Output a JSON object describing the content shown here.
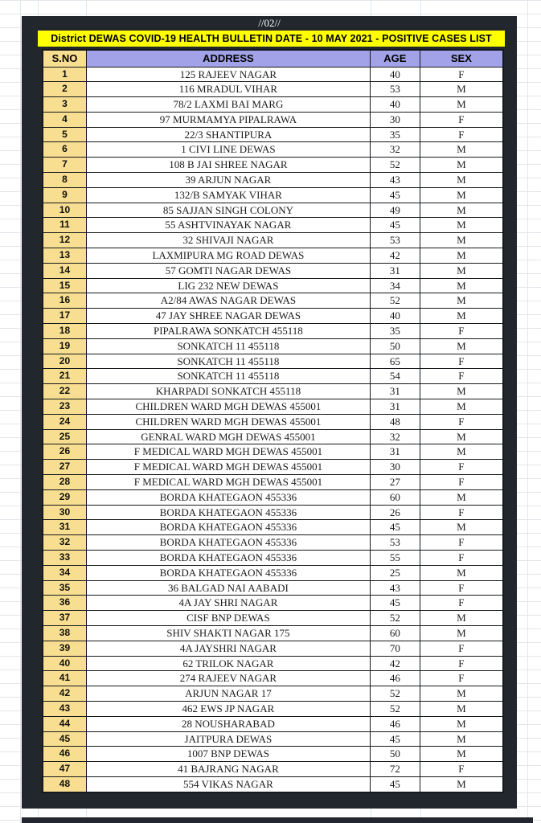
{
  "page": {
    "marker": "//02//"
  },
  "banner": {
    "title": "District DEWAS COVID-19 HEALTH BULLETIN DATE - 10 MAY 2021 - POSITIVE CASES LIST",
    "bg_color": "#ffff00"
  },
  "table": {
    "columns": [
      "S.NO",
      "ADDRESS",
      "AGE",
      "SEX"
    ],
    "colors": {
      "panel_bg": "#22272d",
      "serial_bg": "#f8de90",
      "header_bg": "#a2a2e8"
    },
    "rows": [
      [
        "1",
        "125 RAJEEV NAGAR",
        "40",
        "F"
      ],
      [
        "2",
        "116 MRADUL VIHAR",
        "53",
        "M"
      ],
      [
        "3",
        "78/2  LAXMI BAI MARG",
        "40",
        "M"
      ],
      [
        "4",
        "97 MURMAMYA PIPALRAWA",
        "30",
        "F"
      ],
      [
        "5",
        "22/3 SHANTIPURA",
        "35",
        "F"
      ],
      [
        "6",
        "1 CIVI LINE DEWAS",
        "32",
        "M"
      ],
      [
        "7",
        "108 B JAI SHREE NAGAR",
        "52",
        "M"
      ],
      [
        "8",
        "39 ARJUN NAGAR",
        "43",
        "M"
      ],
      [
        "9",
        "132/B SAMYAK VIHAR",
        "45",
        "M"
      ],
      [
        "10",
        "85 SAJJAN SINGH COLONY",
        "49",
        "M"
      ],
      [
        "11",
        "55 ASHTVINAYAK NAGAR",
        "45",
        "M"
      ],
      [
        "12",
        "32 SHIVAJI NAGAR",
        "53",
        "M"
      ],
      [
        "13",
        "LAXMIPURA  MG ROAD DEWAS",
        "42",
        "M"
      ],
      [
        "14",
        "57 GOMTI NAGAR DEWAS",
        "31",
        "M"
      ],
      [
        "15",
        "LIG 232 NEW DEWAS",
        "34",
        "M"
      ],
      [
        "16",
        "A2/84 AWAS NAGAR DEWAS",
        "52",
        "M"
      ],
      [
        "17",
        "47 JAY SHREE NAGAR DEWAS",
        "40",
        "M"
      ],
      [
        "18",
        "PIPALRAWA SONKATCH 455118",
        "35",
        "F"
      ],
      [
        "19",
        "SONKATCH 11 455118",
        "50",
        "M"
      ],
      [
        "20",
        "SONKATCH 11 455118",
        "65",
        "F"
      ],
      [
        "21",
        "SONKATCH 11 455118",
        "54",
        "F"
      ],
      [
        "22",
        "KHARPADI SONKATCH 455118",
        "31",
        "M"
      ],
      [
        "23",
        "CHILDREN WARD MGH DEWAS 455001",
        "31",
        "M"
      ],
      [
        "24",
        "CHILDREN WARD MGH DEWAS 455001",
        "48",
        "F"
      ],
      [
        "25",
        "GENRAL WARD MGH DEWAS 455001",
        "32",
        "M"
      ],
      [
        "26",
        "F MEDICAL WARD MGH DEWAS 455001",
        "31",
        "M"
      ],
      [
        "27",
        "F MEDICAL WARD MGH DEWAS 455001",
        "30",
        "F"
      ],
      [
        "28",
        "F MEDICAL WARD MGH DEWAS 455001",
        "27",
        "F"
      ],
      [
        "29",
        "BORDA KHATEGAON 455336",
        "60",
        "M"
      ],
      [
        "30",
        "BORDA KHATEGAON 455336",
        "26",
        "F"
      ],
      [
        "31",
        "BORDA KHATEGAON 455336",
        "45",
        "M"
      ],
      [
        "32",
        "BORDA KHATEGAON 455336",
        "53",
        "F"
      ],
      [
        "33",
        "BORDA KHATEGAON 455336",
        "55",
        "F"
      ],
      [
        "34",
        "BORDA KHATEGAON 455336",
        "25",
        "M"
      ],
      [
        "35",
        "36 BALGAD NAI AABADI",
        "43",
        "F"
      ],
      [
        "36",
        "4A JAY SHRI NAGAR",
        "45",
        "F"
      ],
      [
        "37",
        "CISF BNP DEWAS",
        "52",
        "M"
      ],
      [
        "38",
        "SHIV SHAKTI NAGAR 175",
        "60",
        "M"
      ],
      [
        "39",
        "4A JAYSHRI NAGAR",
        "70",
        "F"
      ],
      [
        "40",
        "62 TRILOK NAGAR",
        "42",
        "F"
      ],
      [
        "41",
        "274 RAJEEV NAGAR",
        "46",
        "F"
      ],
      [
        "42",
        "ARJUN NAGAR 17",
        "52",
        "M"
      ],
      [
        "43",
        "462 EWS JP NAGAR",
        "52",
        "M"
      ],
      [
        "44",
        "28 NOUSHARABAD",
        "46",
        "M"
      ],
      [
        "45",
        "JAITPURA DEWAS",
        "45",
        "M"
      ],
      [
        "46",
        "1007 BNP DEWAS",
        "50",
        "M"
      ],
      [
        "47",
        "41 BAJRANG NAGAR",
        "72",
        "F"
      ],
      [
        "48",
        "554 VIKAS NAGAR",
        "45",
        "M"
      ]
    ]
  }
}
